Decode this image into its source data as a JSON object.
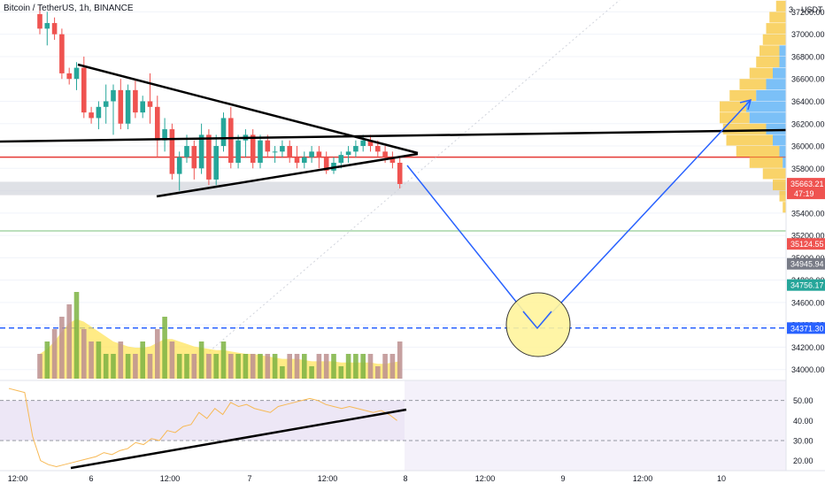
{
  "header": {
    "title": "Bitcoin / TetherUS, 1h, BINANCE",
    "currency": "USDT",
    "scale_marker": "3",
    "scale_marker_right": "0"
  },
  "colors": {
    "up": "#26a69a",
    "down": "#ef5350",
    "volume_ma_fill": "#ffe45c",
    "hline_red": "#e53935",
    "hline_blue": "#2962ff",
    "projection": "#2962ff",
    "circle_fill": "#fff59d",
    "rsi_line": "#f7b955",
    "rsi_bg": "#ede7f6",
    "trendline": "#000000",
    "vp_yellow": "#f7c843",
    "vp_blue": "#64b5f6"
  },
  "chart_data": [
    {
      "type": "candlestick",
      "title": "Bitcoin / TetherUS, 1h, BINANCE",
      "x_ticks": [
        "12:00",
        "6",
        "12:00",
        "7",
        "12:00",
        "8",
        "12:00",
        "9",
        "12:00",
        "10"
      ],
      "y_ticks": [
        "37200.00",
        "37000.00",
        "36800.00",
        "36600.00",
        "36400.00",
        "36200.00",
        "36000.00",
        "35800.00",
        "35600.00",
        "35400.00",
        "35200.00",
        "35000.00",
        "34800.00",
        "34600.00",
        "34400.00",
        "34200.00",
        "34000.00"
      ],
      "ylim": [
        33900,
        37250
      ],
      "price_labels": [
        {
          "value": "35663.21",
          "sub": "47:19",
          "price": 35663,
          "color": "#ef5350"
        },
        {
          "value": "35124.55",
          "price": 35124,
          "color": "#ef5350"
        },
        {
          "value": "34945.94",
          "price": 34946,
          "color": "#787b86"
        },
        {
          "value": "34756.17",
          "price": 34756,
          "color": "#26a69a"
        },
        {
          "value": "34371.30",
          "price": 34371,
          "color": "#2962ff"
        }
      ],
      "horizontal_lines": [
        {
          "price": 35900,
          "style": "solid",
          "color": "#e53935"
        },
        {
          "price": 34371.3,
          "style": "dashed",
          "color": "#2962ff"
        },
        {
          "price": 35240,
          "style": "solid",
          "color": "#a5d6a7"
        }
      ],
      "zone": [
        35680,
        35560
      ],
      "candles": [
        [
          37180,
          37250,
          37000,
          37050
        ],
        [
          37050,
          37200,
          36900,
          37100
        ],
        [
          37100,
          37150,
          36950,
          37000
        ],
        [
          37000,
          37050,
          36600,
          36650
        ],
        [
          36650,
          36700,
          36550,
          36600
        ],
        [
          36600,
          36750,
          36500,
          36700
        ],
        [
          36700,
          36800,
          36250,
          36300
        ],
        [
          36300,
          36350,
          36200,
          36250
        ],
        [
          36250,
          36400,
          36150,
          36350
        ],
        [
          36350,
          36550,
          36200,
          36400
        ],
        [
          36400,
          36550,
          36100,
          36500
        ],
        [
          36500,
          36600,
          36150,
          36200
        ],
        [
          36200,
          36550,
          36150,
          36500
        ],
        [
          36500,
          36600,
          36250,
          36300
        ],
        [
          36300,
          36450,
          36250,
          36400
        ],
        [
          36400,
          36650,
          36200,
          36350
        ],
        [
          36350,
          36450,
          35900,
          36050
        ],
        [
          36050,
          36250,
          35950,
          36150
        ],
        [
          36150,
          36200,
          35700,
          35750
        ],
        [
          35750,
          35950,
          35600,
          35900
        ],
        [
          35900,
          36100,
          35850,
          36000
        ],
        [
          36000,
          36050,
          35700,
          35800
        ],
        [
          35800,
          36200,
          35750,
          36100
        ],
        [
          36100,
          36150,
          35650,
          35700
        ],
        [
          35700,
          36100,
          35650,
          36000
        ],
        [
          36000,
          36300,
          35950,
          36250
        ],
        [
          36250,
          36350,
          35800,
          35850
        ],
        [
          35850,
          36100,
          35800,
          36050
        ],
        [
          36050,
          36150,
          35900,
          36100
        ],
        [
          36100,
          36150,
          35800,
          35850
        ],
        [
          35850,
          36100,
          35800,
          36050
        ],
        [
          36050,
          36100,
          35900,
          35950
        ],
        [
          35950,
          36000,
          35850,
          35950
        ],
        [
          35950,
          36050,
          35900,
          36000
        ],
        [
          36000,
          36050,
          35850,
          35900
        ],
        [
          35900,
          36000,
          35800,
          35850
        ],
        [
          35850,
          35950,
          35800,
          35900
        ],
        [
          35900,
          36000,
          35850,
          35950
        ],
        [
          35950,
          36000,
          35800,
          35900
        ],
        [
          35900,
          35950,
          35750,
          35780
        ],
        [
          35780,
          35900,
          35750,
          35850
        ],
        [
          35850,
          35950,
          35800,
          35920
        ],
        [
          35920,
          36000,
          35850,
          35950
        ],
        [
          35950,
          36050,
          35900,
          36000
        ],
        [
          36000,
          36100,
          35950,
          36050
        ],
        [
          36050,
          36100,
          35950,
          36000
        ],
        [
          36000,
          36050,
          35900,
          35950
        ],
        [
          35950,
          36000,
          35850,
          35900
        ],
        [
          35900,
          35950,
          35800,
          35850
        ],
        [
          35850,
          35900,
          35620,
          35660
        ]
      ],
      "volumes": [
        2,
        3,
        4,
        5,
        6,
        7,
        4,
        3,
        3,
        2,
        2,
        3,
        2,
        2,
        3,
        2,
        4,
        5,
        3,
        2,
        2,
        2,
        3,
        2,
        2,
        3,
        2,
        2,
        2,
        2,
        2,
        2,
        2,
        1,
        2,
        2,
        2,
        1,
        2,
        2,
        2,
        1,
        2,
        2,
        2,
        2,
        1,
        2,
        2,
        3
      ],
      "volume_ma": [
        2,
        2.4,
        3,
        3.8,
        4.5,
        4.8,
        4.6,
        4.2,
        3.8,
        3.4,
        3.0,
        2.8,
        2.6,
        2.5,
        2.5,
        2.6,
        2.9,
        3.2,
        3.2,
        3.0,
        2.8,
        2.6,
        2.5,
        2.4,
        2.3,
        2.3,
        2.2,
        2.1,
        2.0,
        2.0,
        1.9,
        1.8,
        1.7,
        1.6,
        1.6,
        1.6,
        1.5,
        1.4,
        1.4,
        1.4,
        1.4,
        1.3,
        1.3,
        1.3,
        1.3,
        1.3,
        1.2,
        1.2,
        1.3,
        1.4
      ],
      "volume_profile": [
        [
          37250,
          0.15,
          0
        ],
        [
          37150,
          0.25,
          0
        ],
        [
          37050,
          0.3,
          0
        ],
        [
          36950,
          0.35,
          0
        ],
        [
          36850,
          0.4,
          0.1
        ],
        [
          36750,
          0.45,
          0.1
        ],
        [
          36650,
          0.55,
          0.2
        ],
        [
          36550,
          0.7,
          0.3
        ],
        [
          36450,
          0.85,
          0.45
        ],
        [
          36350,
          1.0,
          0.6
        ],
        [
          36250,
          1.0,
          0.55
        ],
        [
          36150,
          0.95,
          0.3
        ],
        [
          36050,
          0.9,
          0.2
        ],
        [
          35950,
          0.75,
          0.1
        ],
        [
          35850,
          0.55,
          0.05
        ],
        [
          35750,
          0.35,
          0
        ],
        [
          35650,
          0.2,
          0
        ],
        [
          35550,
          0.1,
          0
        ],
        [
          35450,
          0.05,
          0
        ]
      ]
    },
    {
      "type": "line",
      "title": "RSI",
      "y_ticks": [
        "50.00",
        "40.00",
        "30.00",
        "20.00"
      ],
      "ylim": [
        15,
        60
      ],
      "bands": [
        30,
        50
      ],
      "values": [
        56,
        55,
        54,
        32,
        20,
        18,
        17,
        18,
        19,
        20,
        21,
        22,
        24,
        23,
        25,
        26,
        29,
        28,
        31,
        30,
        35,
        34,
        37,
        38,
        44,
        41,
        46,
        43,
        49,
        47,
        48,
        46,
        45,
        44,
        47,
        48,
        49,
        50,
        51,
        50,
        48,
        47,
        46,
        47,
        46,
        45,
        44,
        45,
        43,
        40
      ]
    }
  ]
}
